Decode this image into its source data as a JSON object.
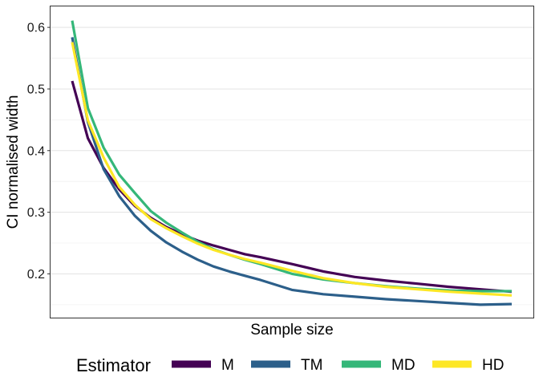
{
  "chart_data": {
    "type": "line",
    "title": "",
    "xlabel": "Sample size",
    "ylabel": "CI normalised width",
    "x_ticks_shown": false,
    "x": [
      10,
      15,
      20,
      25,
      30,
      35,
      40,
      45,
      50,
      55,
      60,
      65,
      70,
      80,
      90,
      100,
      110,
      120,
      130,
      140,
      150
    ],
    "ylim": [
      0.129,
      0.634
    ],
    "yticks": [
      0.2,
      0.3,
      0.4,
      0.5,
      0.6
    ],
    "ytick_labels": [
      "0.2",
      "0.3",
      "0.4",
      "0.5",
      "0.6"
    ],
    "grid": true,
    "legend": {
      "title": "Estimator",
      "position": "bottom"
    },
    "series": [
      {
        "name": "M",
        "color": "#440154",
        "values": [
          0.513,
          0.42,
          0.372,
          0.337,
          0.31,
          0.291,
          0.276,
          0.264,
          0.254,
          0.246,
          0.239,
          0.232,
          0.227,
          0.216,
          0.204,
          0.195,
          0.189,
          0.184,
          0.179,
          0.175,
          0.171
        ]
      },
      {
        "name": "TM",
        "color": "#2C5F8A",
        "values": [
          0.584,
          0.446,
          0.37,
          0.326,
          0.294,
          0.27,
          0.251,
          0.236,
          0.223,
          0.212,
          0.204,
          0.197,
          0.19,
          0.174,
          0.167,
          0.163,
          0.159,
          0.156,
          0.153,
          0.15,
          0.151
        ]
      },
      {
        "name": "MD",
        "color": "#35B779",
        "values": [
          0.611,
          0.469,
          0.405,
          0.361,
          0.331,
          0.302,
          0.283,
          0.267,
          0.252,
          0.24,
          0.231,
          0.223,
          0.216,
          0.2,
          0.191,
          0.185,
          0.18,
          0.176,
          0.173,
          0.172,
          0.172
        ]
      },
      {
        "name": "HD",
        "color": "#FDE725",
        "values": [
          0.576,
          0.449,
          0.389,
          0.341,
          0.312,
          0.289,
          0.274,
          0.261,
          0.249,
          0.239,
          0.231,
          0.224,
          0.218,
          0.205,
          0.193,
          0.185,
          0.179,
          0.175,
          0.171,
          0.168,
          0.165
        ]
      }
    ]
  }
}
